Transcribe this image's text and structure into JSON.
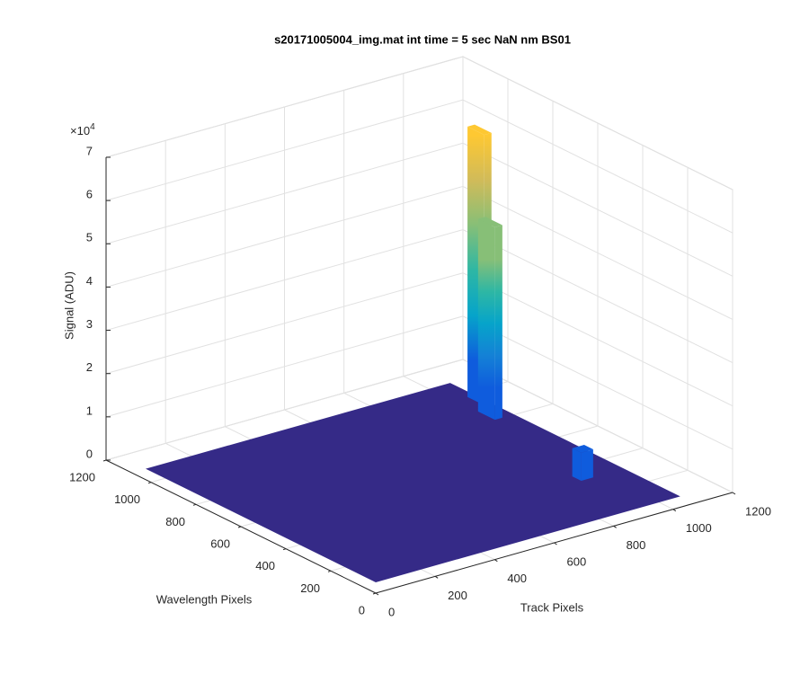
{
  "chart_data": {
    "type": "surface3d",
    "title": "s20171005004_img.mat int time = 5 sec  NaN nm BS01",
    "xlabel": "Track Pixels",
    "ylabel": "Wavelength Pixels",
    "zlabel": "Signal (ADU)",
    "z_multiplier": {
      "base": "×10",
      "exponent": "4"
    },
    "xlim": [
      0,
      1200
    ],
    "ylim": [
      0,
      1200
    ],
    "zlim": [
      0,
      70000
    ],
    "xticks": [
      0,
      200,
      400,
      600,
      800,
      1000,
      1200
    ],
    "yticks": [
      0,
      200,
      400,
      600,
      800,
      1000,
      1200
    ],
    "zticks": [
      {
        "value": 0,
        "label": "0"
      },
      {
        "value": 10000,
        "label": "1"
      },
      {
        "value": 20000,
        "label": "2"
      },
      {
        "value": 30000,
        "label": "3"
      },
      {
        "value": 40000,
        "label": "4"
      },
      {
        "value": 50000,
        "label": "5"
      },
      {
        "value": 60000,
        "label": "6"
      },
      {
        "value": 70000,
        "label": "7"
      }
    ],
    "grid": true,
    "colormap": [
      "#352a87",
      "#0f5cdd",
      "#1481d6",
      "#06a4ca",
      "#2eb7a4",
      "#87bf77",
      "#d1bb59",
      "#fec832",
      "#f9fb0e"
    ],
    "surface": {
      "track": [
        0,
        1024
      ],
      "wavelength": [
        0,
        1024
      ],
      "level": 2500,
      "color": "#352a87"
    },
    "ridges": [
      {
        "track": [
          1000,
          1024
        ],
        "wavelength": [
          840,
          915
        ],
        "peak": 65000
      },
      {
        "track": [
          960,
          985
        ],
        "wavelength": [
          740,
          815
        ],
        "peak": 47000
      },
      {
        "track": [
          880,
          920
        ],
        "wavelength": [
          250,
          290
        ],
        "peak": 9000
      }
    ]
  }
}
